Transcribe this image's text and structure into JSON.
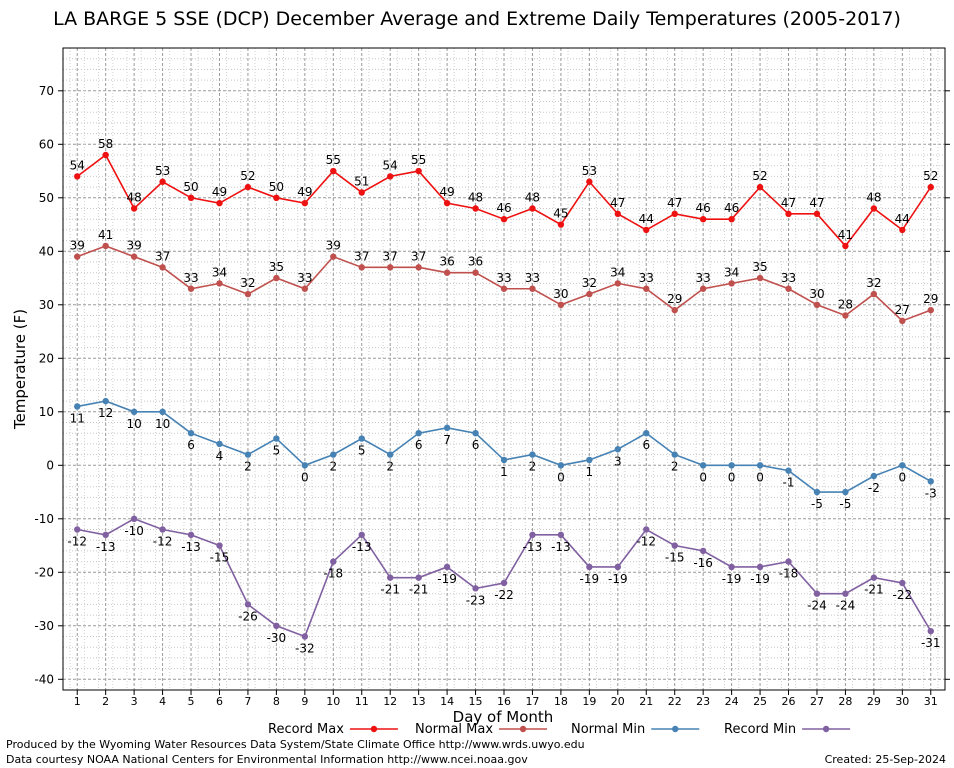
{
  "chart_data": {
    "type": "line",
    "title": "LA BARGE 5 SSE (DCP) December Average and Extreme Daily Temperatures (2005-2017)",
    "xlabel": "Day of Month",
    "ylabel": "Temperature (F)",
    "ylim": [
      -42,
      78
    ],
    "yticks": [
      -40,
      -30,
      -20,
      -10,
      0,
      10,
      20,
      30,
      40,
      50,
      60,
      70
    ],
    "x": [
      1,
      2,
      3,
      4,
      5,
      6,
      7,
      8,
      9,
      10,
      11,
      12,
      13,
      14,
      15,
      16,
      17,
      18,
      19,
      20,
      21,
      22,
      23,
      24,
      25,
      26,
      27,
      28,
      29,
      30,
      31
    ],
    "grid": true,
    "legend_position": "bottom",
    "series": [
      {
        "name": "Record Max",
        "color": "#ee1111",
        "label_pos": "above",
        "values": [
          54,
          58,
          48,
          53,
          50,
          49,
          52,
          50,
          49,
          55,
          51,
          54,
          55,
          49,
          48,
          46,
          48,
          45,
          53,
          47,
          44,
          47,
          46,
          46,
          52,
          47,
          47,
          41,
          48,
          44,
          52
        ]
      },
      {
        "name": "Normal Max",
        "color": "#c0504d",
        "label_pos": "above",
        "values": [
          39,
          41,
          39,
          37,
          33,
          34,
          32,
          35,
          33,
          39,
          37,
          37,
          37,
          36,
          36,
          33,
          33,
          30,
          32,
          34,
          33,
          29,
          33,
          34,
          35,
          33,
          30,
          28,
          32,
          27,
          29
        ]
      },
      {
        "name": "Normal Min",
        "color": "#4682b4",
        "label_pos": "below",
        "values": [
          11,
          12,
          10,
          10,
          6,
          4,
          2,
          5,
          0,
          2,
          5,
          2,
          6,
          7,
          6,
          1,
          2,
          0,
          1,
          3,
          6,
          2,
          0,
          0,
          0,
          -1,
          -5,
          -5,
          -2,
          0,
          -3
        ]
      },
      {
        "name": "Record Min",
        "color": "#8060a0",
        "label_pos": "below",
        "values": [
          -12,
          -13,
          -10,
          -12,
          -13,
          -15,
          -26,
          -30,
          -32,
          -18,
          -13,
          -21,
          -21,
          -19,
          -23,
          -22,
          -13,
          -13,
          -19,
          -19,
          -12,
          -15,
          -16,
          -19,
          -19,
          -18,
          -24,
          -24,
          -21,
          -22,
          -31
        ]
      }
    ]
  },
  "footer": {
    "produced_by": "Produced by the Wyoming Water Resources Data System/State Climate Office http://www.wrds.uwyo.edu",
    "courtesy": "Data courtesy NOAA National Centers for Environmental Information http://www.ncei.noaa.gov",
    "created": "Created:  25-Sep-2024"
  }
}
